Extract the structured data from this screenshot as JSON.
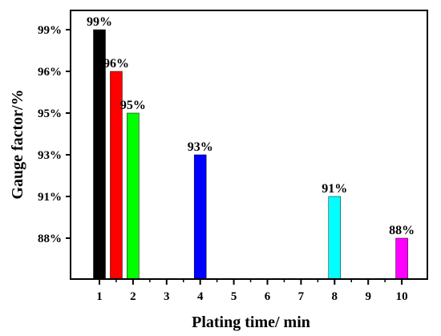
{
  "chart_data": {
    "type": "bar",
    "xlabel": "Plating time/ min",
    "ylabel": "Gauge factor/%",
    "x_ticks": [
      "1",
      "2",
      "3",
      "4",
      "5",
      "6",
      "7",
      "8",
      "9",
      "10"
    ],
    "y_ticks": [
      "88%",
      "91%",
      "93%",
      "95%",
      "96%",
      "99%"
    ],
    "bars": [
      {
        "x": 1,
        "value": "99%",
        "color": "#000000"
      },
      {
        "x": 1.5,
        "value": "96%",
        "color": "#ff0000"
      },
      {
        "x": 2,
        "value": "95%",
        "color": "#00ff00"
      },
      {
        "x": 4,
        "value": "93%",
        "color": "#0000ff"
      },
      {
        "x": 8,
        "value": "91%",
        "color": "#00ffff"
      },
      {
        "x": 10,
        "value": "88%",
        "color": "#ff00ff"
      }
    ],
    "grid": false,
    "legend": "none"
  }
}
